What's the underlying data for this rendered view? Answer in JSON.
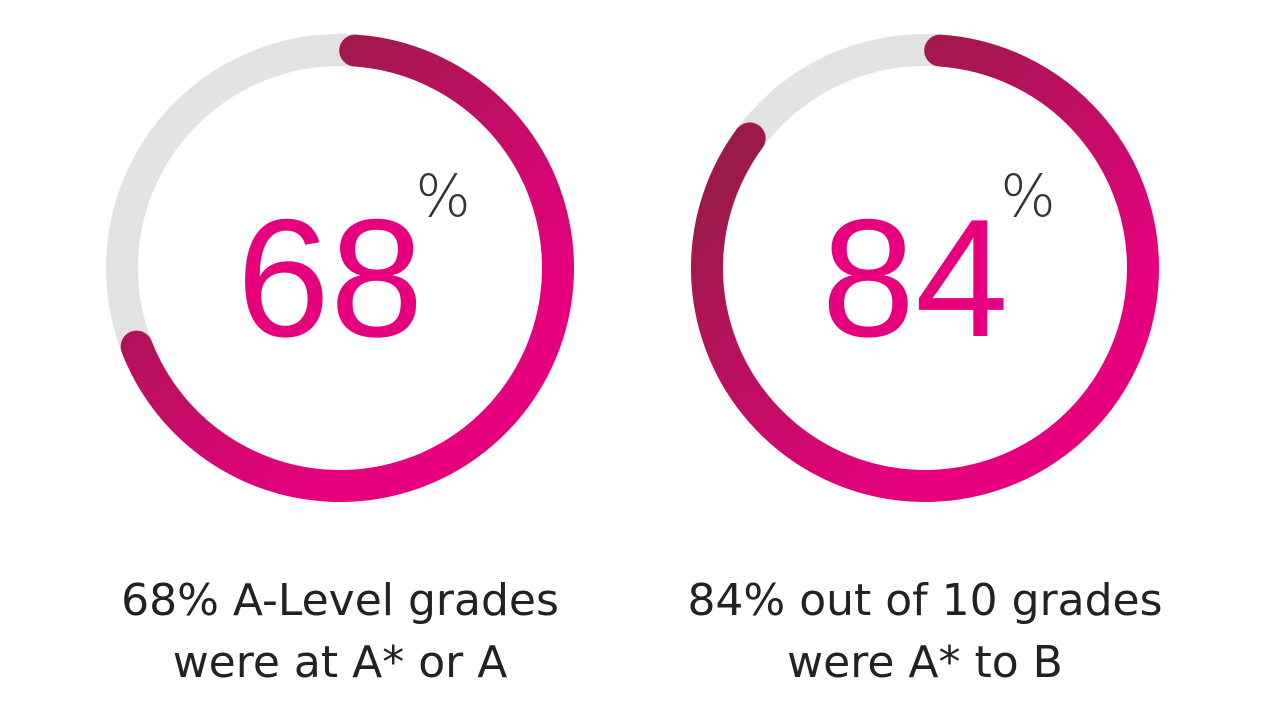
{
  "chart_data": [
    {
      "type": "gauge",
      "value": 68,
      "unit": "%",
      "ylim": [
        0,
        100
      ],
      "caption": [
        "68% A-Level grades",
        "were at A* or A"
      ],
      "colors": [
        "#9c1a4b",
        "#e6007e"
      ],
      "track_color": "#e2e2e2"
    },
    {
      "type": "gauge",
      "value": 84,
      "unit": "%",
      "ylim": [
        0,
        100
      ],
      "caption": [
        "84% out of 10 grades",
        "were A* to B"
      ],
      "colors": [
        "#9c1a4b",
        "#e6007e"
      ],
      "track_color": "#e2e2e2"
    }
  ]
}
